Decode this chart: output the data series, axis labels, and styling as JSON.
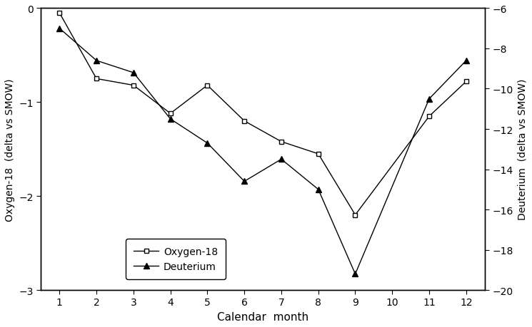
{
  "oxygen18_months": [
    1,
    2,
    3,
    4,
    5,
    6,
    7,
    8,
    9,
    11,
    12
  ],
  "oxygen18_vals": [
    -0.05,
    -0.75,
    -0.82,
    -1.12,
    -0.82,
    -1.2,
    -1.42,
    -1.55,
    -2.2,
    -1.15,
    -0.78
  ],
  "deuterium_months": [
    1,
    2,
    3,
    4,
    5,
    6,
    7,
    8,
    9,
    11,
    12
  ],
  "deuterium_vals": [
    -7.0,
    -8.6,
    -9.2,
    -11.5,
    -12.7,
    -14.6,
    -13.5,
    -15.0,
    -19.2,
    -10.5,
    -8.6
  ],
  "left_ylim": [
    -3,
    0
  ],
  "left_yticks": [
    -3,
    -2,
    -1,
    0
  ],
  "right_ylim": [
    -20,
    -6
  ],
  "right_yticks": [
    -20,
    -18,
    -16,
    -14,
    -12,
    -10,
    -8,
    -6
  ],
  "xlim": [
    0.5,
    12.5
  ],
  "xticks": [
    1,
    2,
    3,
    4,
    5,
    6,
    7,
    8,
    9,
    10,
    11,
    12
  ],
  "xlabel": "Calendar  month",
  "ylabel_left": "Oxygen-18  (delta vs SMOW)",
  "ylabel_right": "Deuterium  (delta vs SMOW)",
  "legend_oxygen18": "Oxygen-18",
  "legend_deuterium": "Deuterium",
  "line_color": "black",
  "bg_color": "white",
  "figwidth": 7.45,
  "figheight": 4.6,
  "dpi": 100
}
